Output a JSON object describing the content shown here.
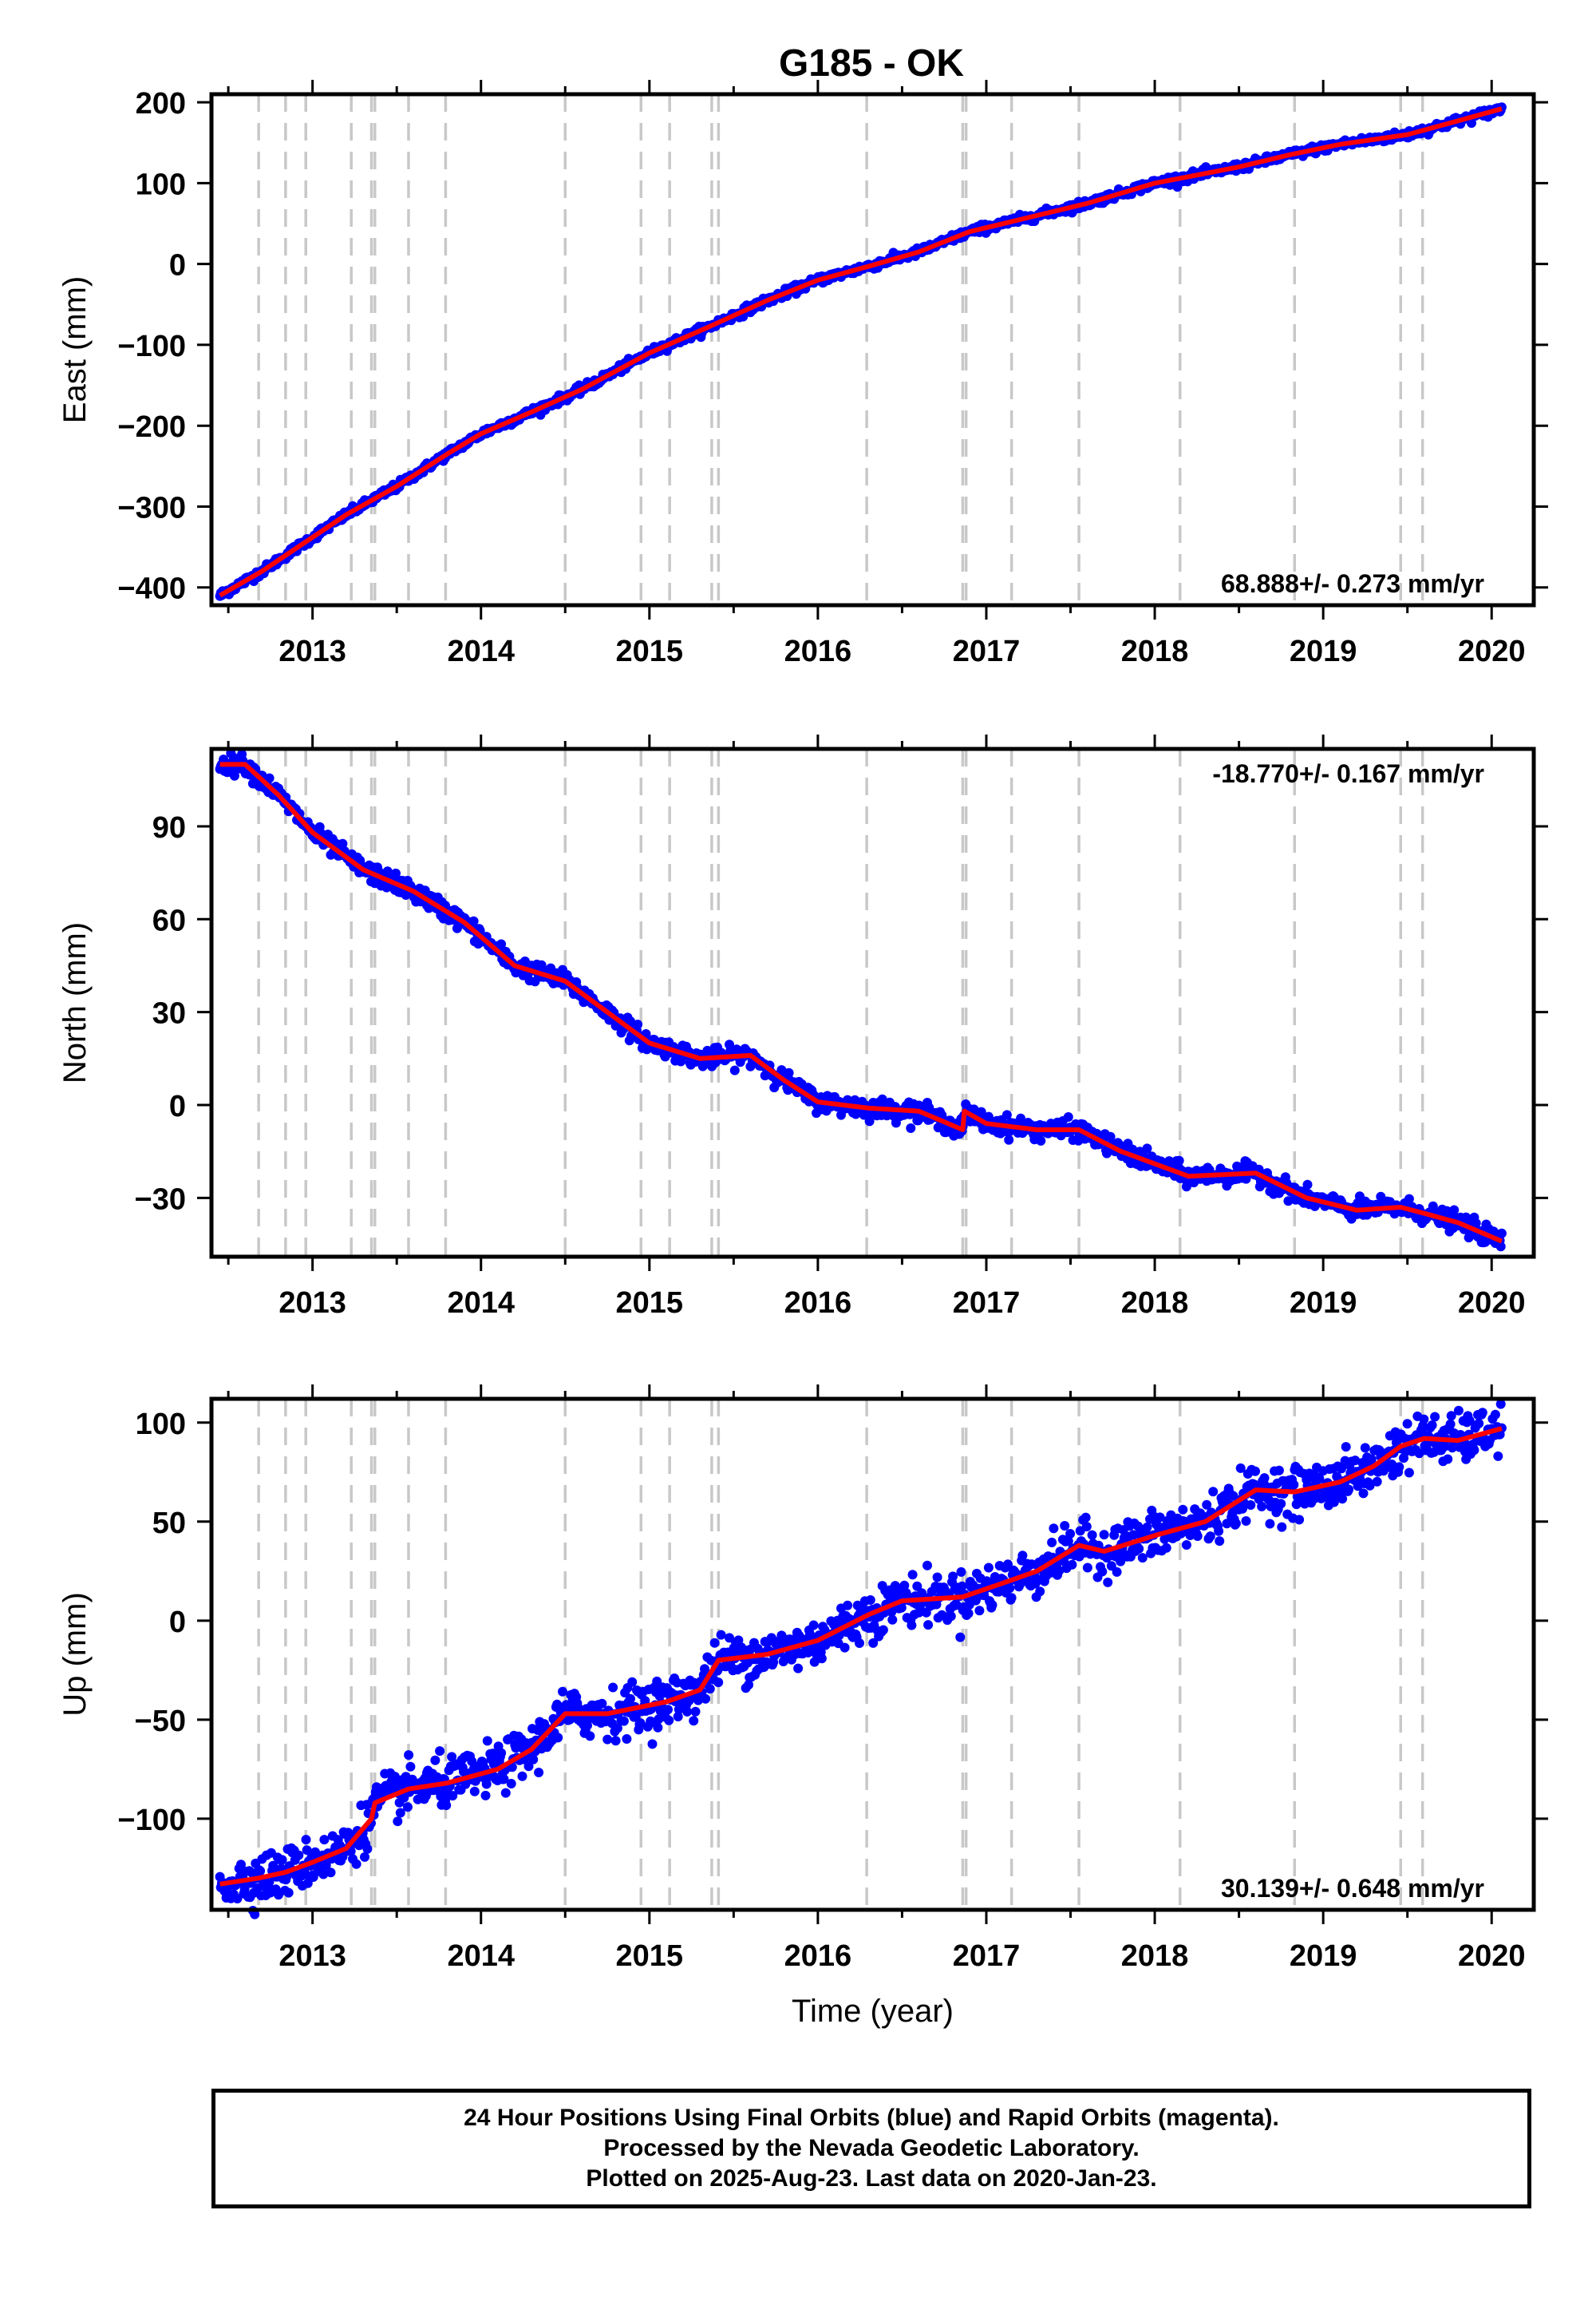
{
  "title": "G185 - OK",
  "colors": {
    "final_orbits": "#0000ff",
    "fit": "#ff0000",
    "steps": "#c8c8c8",
    "axes": "#000000"
  },
  "step_epochs": [
    2012.68,
    2012.84,
    2012.96,
    2013.23,
    2013.35,
    2013.37,
    2013.57,
    2013.79,
    2014.5,
    2014.95,
    2015.12,
    2015.37,
    2015.41,
    2016.29,
    2016.86,
    2016.88,
    2017.15,
    2017.55,
    2018.15,
    2018.83,
    2019.46,
    2019.59
  ],
  "chart_data": [
    {
      "type": "scatter",
      "component": "east",
      "ylabel": "East (mm)",
      "xlim": [
        2012.4,
        2020.25
      ],
      "ylim": [
        -422,
        210
      ],
      "yticks": [
        -400,
        -300,
        -200,
        -100,
        0,
        100,
        200
      ],
      "xticks": [
        2013,
        2014,
        2015,
        2016,
        2017,
        2018,
        2019,
        2020
      ],
      "rate_label": "68.888+/- 0.273 mm/yr",
      "rate_position": "bottom-right",
      "noise_mm": 2.5,
      "series": [
        {
          "x": [
            2012.45,
            2012.7,
            2012.95,
            2013.2,
            2013.5,
            2013.8,
            2014.0,
            2014.3,
            2014.6,
            2015.0,
            2015.35,
            2015.7,
            2016.0,
            2016.3,
            2016.6,
            2016.9,
            2017.2,
            2017.6,
            2018.0,
            2018.5,
            2018.8,
            2019.1,
            2019.5,
            2019.8,
            2020.06
          ],
          "y": [
            -410,
            -380,
            -345,
            -310,
            -275,
            -235,
            -210,
            -183,
            -155,
            -110,
            -78,
            -45,
            -20,
            -3,
            15,
            40,
            55,
            75,
            100,
            120,
            135,
            148,
            160,
            177,
            192
          ]
        }
      ]
    },
    {
      "type": "scatter",
      "component": "north",
      "ylabel": "North (mm)",
      "xlim": [
        2012.4,
        2020.25
      ],
      "ylim": [
        -49,
        115
      ],
      "yticks": [
        -30,
        0,
        30,
        60,
        90
      ],
      "xticks": [
        2013,
        2014,
        2015,
        2016,
        2017,
        2018,
        2019,
        2020
      ],
      "rate_label": "-18.770+/- 0.167 mm/yr",
      "rate_position": "top-right",
      "noise_mm": 1.5,
      "series": [
        {
          "x": [
            2012.45,
            2012.6,
            2012.68,
            2012.8,
            2013.0,
            2013.3,
            2013.6,
            2013.9,
            2014.2,
            2014.5,
            2014.75,
            2015.0,
            2015.3,
            2015.6,
            2015.8,
            2016.0,
            2016.3,
            2016.6,
            2016.86,
            2016.87,
            2017.0,
            2017.3,
            2017.55,
            2017.8,
            2018.2,
            2018.6,
            2018.9,
            2019.2,
            2019.46,
            2019.6,
            2019.8,
            2020.06
          ],
          "y": [
            110,
            110,
            106,
            100,
            88,
            76,
            69,
            59,
            45,
            40,
            30,
            20,
            15,
            16,
            8,
            1,
            -1,
            -2,
            -8,
            -2,
            -6,
            -8,
            -8,
            -15,
            -23,
            -22,
            -30,
            -34,
            -33,
            -35,
            -38,
            -44
          ]
        }
      ]
    },
    {
      "type": "scatter",
      "component": "up",
      "ylabel": "Up (mm)",
      "xlabel": "Time (year)",
      "xlim": [
        2012.4,
        2020.25
      ],
      "ylim": [
        -146,
        112
      ],
      "yticks": [
        -100,
        -50,
        0,
        50,
        100
      ],
      "xticks": [
        2013,
        2014,
        2015,
        2016,
        2017,
        2018,
        2019,
        2020
      ],
      "rate_label": "30.139+/- 0.648 mm/yr",
      "rate_position": "bottom-right",
      "noise_mm": 6,
      "series": [
        {
          "x": [
            2012.45,
            2012.68,
            2012.84,
            2013.0,
            2013.2,
            2013.35,
            2013.37,
            2013.57,
            2013.8,
            2014.1,
            2014.3,
            2014.5,
            2014.75,
            2015.1,
            2015.3,
            2015.41,
            2015.7,
            2016.0,
            2016.3,
            2016.5,
            2016.86,
            2017.1,
            2017.3,
            2017.55,
            2017.7,
            2018.0,
            2018.3,
            2018.6,
            2018.83,
            2019.1,
            2019.3,
            2019.46,
            2019.6,
            2019.8,
            2020.06
          ],
          "y": [
            -133,
            -130,
            -127,
            -122,
            -115,
            -100,
            -92,
            -85,
            -82,
            -75,
            -65,
            -47,
            -47,
            -41,
            -35,
            -20,
            -17,
            -10,
            3,
            10,
            12,
            19,
            25,
            38,
            35,
            43,
            50,
            66,
            65,
            70,
            78,
            88,
            92,
            91,
            97
          ]
        }
      ]
    }
  ],
  "footer": {
    "line1": "24 Hour Positions Using Final Orbits (blue) and Rapid Orbits (magenta).",
    "line2": "Processed by the Nevada Geodetic Laboratory.",
    "line3": "Plotted on 2025-Aug-23. Last data on 2020-Jan-23."
  }
}
